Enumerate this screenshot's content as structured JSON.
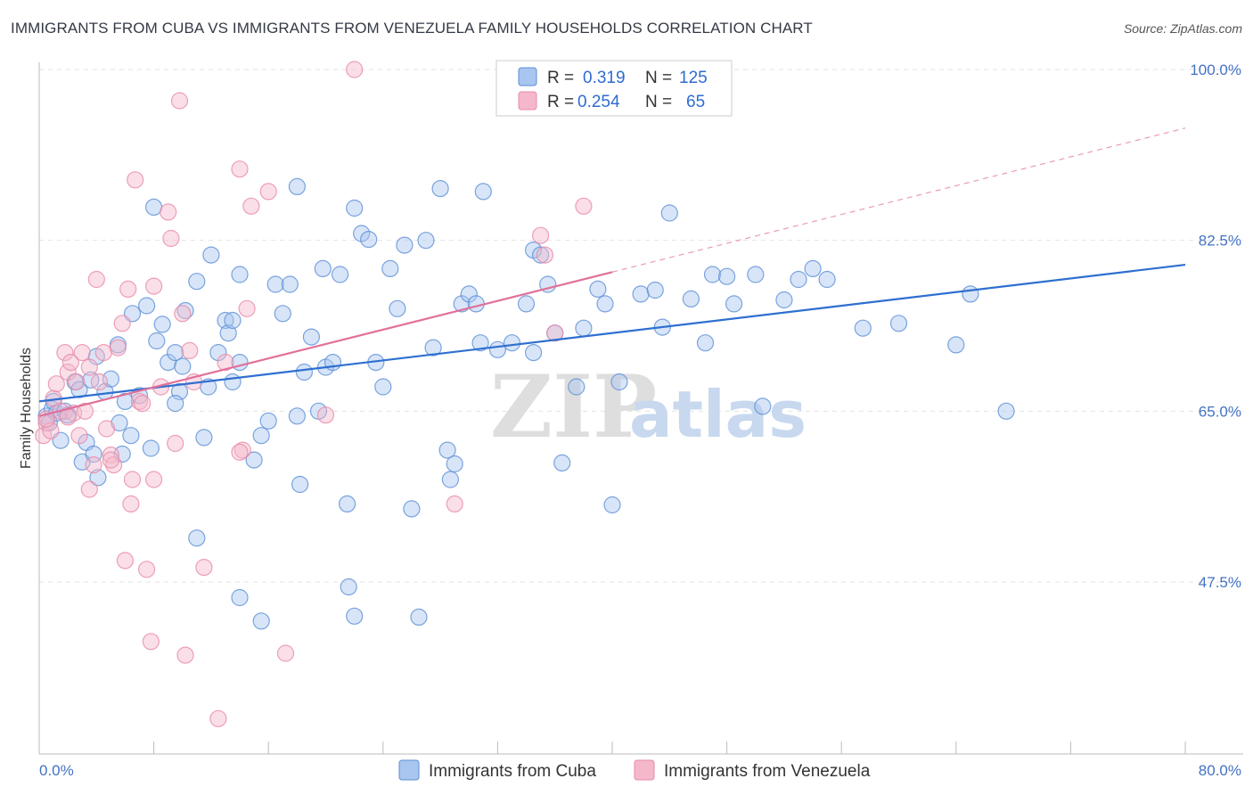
{
  "title": "IMMIGRANTS FROM CUBA VS IMMIGRANTS FROM VENEZUELA FAMILY HOUSEHOLDS CORRELATION CHART",
  "source": "Source: ZipAtlas.com",
  "watermark": {
    "zip": "ZIP",
    "atlas": "atlas"
  },
  "colors": {
    "cuba_fill": "#a9c6f0",
    "cuba_stroke": "#5b8fd6",
    "cuba_line": "#2e6fd0",
    "venezuela_fill": "#f5b8cb",
    "venezuela_stroke": "#e88aa8",
    "venezuela_line": "#e0709a",
    "grid": "#e3e3e3",
    "tick_label": "#4472c4"
  },
  "legend": {
    "rows": [
      {
        "r_label": "R =",
        "r_value": "0.319",
        "n_label": "N =",
        "n_value": "125"
      },
      {
        "r_label": "R =",
        "r_value": "0.254",
        "n_label": "N =",
        "n_value": "65"
      }
    ]
  },
  "chart_data": {
    "type": "scatter",
    "xlabel": "",
    "ylabel": "Family Households",
    "xlim": [
      0,
      80
    ],
    "ylim": [
      32,
      101
    ],
    "x_tick_labels": [
      "0.0%",
      "80.0%"
    ],
    "y_ticks": [
      47.5,
      65.0,
      82.5,
      100.0
    ],
    "y_tick_labels": [
      "47.5%",
      "65.0%",
      "82.5%",
      "100.0%"
    ],
    "series": [
      {
        "name": "Immigrants from Cuba",
        "trend": {
          "x": [
            0,
            80
          ],
          "y": [
            66.0,
            80.0
          ],
          "dashed_until": null
        },
        "points": [
          [
            0.5,
            64.5
          ],
          [
            0.7,
            63.8
          ],
          [
            0.9,
            65.2
          ],
          [
            1.0,
            66.0
          ],
          [
            1.2,
            64.8
          ],
          [
            1.5,
            62.0
          ],
          [
            1.8,
            65.0
          ],
          [
            2.0,
            64.6
          ],
          [
            2.5,
            68.0
          ],
          [
            2.8,
            67.2
          ],
          [
            3.0,
            59.8
          ],
          [
            3.3,
            61.8
          ],
          [
            3.6,
            68.2
          ],
          [
            3.8,
            60.6
          ],
          [
            4.0,
            70.6
          ],
          [
            4.1,
            58.2
          ],
          [
            4.6,
            67.0
          ],
          [
            5.0,
            68.3
          ],
          [
            5.5,
            71.8
          ],
          [
            5.6,
            63.8
          ],
          [
            5.8,
            60.6
          ],
          [
            6.0,
            66.0
          ],
          [
            6.4,
            62.5
          ],
          [
            7.0,
            66.6
          ],
          [
            7.8,
            61.2
          ],
          [
            7.5,
            75.8
          ],
          [
            8.6,
            73.9
          ],
          [
            9.0,
            70.0
          ],
          [
            9.5,
            71.0
          ],
          [
            9.8,
            67.0
          ],
          [
            8.2,
            72.2
          ],
          [
            8.0,
            85.9
          ],
          [
            10.0,
            69.6
          ],
          [
            10.2,
            75.3
          ],
          [
            11.0,
            78.3
          ],
          [
            11.5,
            62.3
          ],
          [
            11.8,
            67.5
          ],
          [
            12.0,
            81.0
          ],
          [
            12.5,
            71.0
          ],
          [
            13.0,
            74.3
          ],
          [
            13.2,
            73.0
          ],
          [
            13.5,
            74.3
          ],
          [
            13.5,
            68.0
          ],
          [
            14.0,
            70.0
          ],
          [
            14.0,
            79.0
          ],
          [
            15.0,
            60.0
          ],
          [
            15.5,
            62.5
          ],
          [
            16.0,
            64.0
          ],
          [
            16.5,
            78.0
          ],
          [
            17.0,
            75.0
          ],
          [
            17.5,
            78.0
          ],
          [
            18.0,
            88.0
          ],
          [
            18.0,
            64.5
          ],
          [
            18.2,
            57.5
          ],
          [
            18.5,
            69.0
          ],
          [
            19.0,
            72.6
          ],
          [
            19.5,
            65.0
          ],
          [
            19.8,
            79.6
          ],
          [
            20.0,
            69.5
          ],
          [
            20.5,
            70.0
          ],
          [
            21.0,
            79.0
          ],
          [
            21.5,
            55.5
          ],
          [
            21.6,
            47.0
          ],
          [
            22.0,
            44.0
          ],
          [
            22.0,
            85.8
          ],
          [
            22.5,
            83.2
          ],
          [
            23.0,
            82.6
          ],
          [
            23.5,
            70.0
          ],
          [
            24.0,
            67.5
          ],
          [
            24.5,
            79.6
          ],
          [
            25.0,
            75.5
          ],
          [
            25.5,
            82.0
          ],
          [
            26.0,
            55.0
          ],
          [
            26.5,
            43.9
          ],
          [
            27.0,
            82.5
          ],
          [
            27.5,
            71.5
          ],
          [
            28.0,
            87.8
          ],
          [
            28.5,
            61.0
          ],
          [
            28.7,
            58.0
          ],
          [
            29.0,
            59.6
          ],
          [
            29.5,
            76.0
          ],
          [
            30.0,
            77.0
          ],
          [
            30.5,
            76.0
          ],
          [
            30.8,
            72.0
          ],
          [
            31.0,
            87.5
          ],
          [
            32.0,
            71.3
          ],
          [
            33.0,
            72.0
          ],
          [
            34.0,
            76.0
          ],
          [
            34.5,
            71.0
          ],
          [
            34.5,
            81.5
          ],
          [
            35.0,
            81.0
          ],
          [
            35.5,
            78.0
          ],
          [
            36.0,
            73.0
          ],
          [
            36.5,
            59.7
          ],
          [
            37.5,
            67.5
          ],
          [
            38.0,
            73.5
          ],
          [
            39.0,
            77.5
          ],
          [
            39.5,
            76.0
          ],
          [
            40.0,
            55.4
          ],
          [
            40.5,
            68.0
          ],
          [
            42.0,
            77.0
          ],
          [
            43.0,
            77.4
          ],
          [
            43.5,
            73.6
          ],
          [
            44.0,
            85.3
          ],
          [
            45.5,
            76.5
          ],
          [
            46.5,
            72.0
          ],
          [
            47.0,
            79.0
          ],
          [
            48.0,
            78.8
          ],
          [
            48.5,
            76.0
          ],
          [
            50.0,
            79.0
          ],
          [
            50.5,
            65.5
          ],
          [
            52.0,
            76.4
          ],
          [
            53.0,
            78.5
          ],
          [
            54.0,
            79.6
          ],
          [
            55.0,
            78.5
          ],
          [
            57.5,
            73.5
          ],
          [
            60.0,
            74.0
          ],
          [
            64.0,
            71.8
          ],
          [
            65.0,
            77.0
          ],
          [
            67.5,
            65.0
          ],
          [
            11.0,
            52.0
          ],
          [
            14.0,
            45.9
          ],
          [
            15.5,
            43.5
          ],
          [
            9.5,
            65.8
          ],
          [
            6.5,
            75.0
          ]
        ]
      },
      {
        "name": "Immigrants from Venezuela",
        "trend": {
          "x": [
            0,
            80
          ],
          "y": [
            64.5,
            94.0
          ],
          "solid_until": 40
        },
        "points": [
          [
            0.3,
            62.5
          ],
          [
            0.5,
            63.8
          ],
          [
            0.8,
            63.0
          ],
          [
            1.0,
            66.3
          ],
          [
            1.2,
            67.8
          ],
          [
            1.5,
            65.0
          ],
          [
            1.8,
            71.0
          ],
          [
            2.0,
            69.0
          ],
          [
            2.2,
            70.0
          ],
          [
            2.4,
            64.8
          ],
          [
            2.6,
            68.0
          ],
          [
            2.8,
            62.5
          ],
          [
            3.0,
            71.0
          ],
          [
            3.2,
            65.0
          ],
          [
            3.5,
            57.0
          ],
          [
            3.8,
            59.5
          ],
          [
            4.0,
            78.5
          ],
          [
            4.2,
            68.0
          ],
          [
            4.5,
            71.0
          ],
          [
            4.7,
            63.2
          ],
          [
            5.0,
            60.5
          ],
          [
            5.2,
            59.5
          ],
          [
            5.5,
            71.5
          ],
          [
            5.8,
            74.0
          ],
          [
            6.0,
            49.7
          ],
          [
            6.2,
            77.5
          ],
          [
            6.4,
            55.5
          ],
          [
            6.5,
            58.0
          ],
          [
            6.7,
            88.7
          ],
          [
            7.0,
            66.0
          ],
          [
            7.2,
            65.8
          ],
          [
            7.5,
            48.8
          ],
          [
            7.8,
            41.4
          ],
          [
            8.0,
            58.0
          ],
          [
            8.0,
            77.8
          ],
          [
            8.5,
            67.5
          ],
          [
            9.0,
            85.4
          ],
          [
            9.2,
            82.7
          ],
          [
            9.5,
            61.7
          ],
          [
            9.8,
            96.8
          ],
          [
            10.0,
            75.0
          ],
          [
            10.2,
            40.0
          ],
          [
            10.5,
            71.2
          ],
          [
            10.8,
            68.0
          ],
          [
            11.5,
            49.0
          ],
          [
            12.5,
            33.5
          ],
          [
            13.0,
            70.0
          ],
          [
            14.2,
            61.0
          ],
          [
            14.5,
            75.5
          ],
          [
            14.8,
            86.0
          ],
          [
            14.0,
            89.8
          ],
          [
            16.0,
            87.5
          ],
          [
            17.2,
            40.2
          ],
          [
            20.0,
            64.6
          ],
          [
            22.0,
            100.0
          ],
          [
            29.0,
            55.5
          ],
          [
            35.0,
            83.0
          ],
          [
            35.3,
            81.0
          ],
          [
            36.0,
            73.0
          ],
          [
            38.0,
            86.0
          ],
          [
            2.0,
            64.4
          ],
          [
            3.5,
            69.5
          ],
          [
            0.5,
            64.2
          ],
          [
            5.0,
            60.0
          ],
          [
            14.0,
            60.8
          ]
        ]
      }
    ]
  },
  "bottom_legend": [
    "Immigrants from Cuba",
    "Immigrants from Venezuela"
  ]
}
